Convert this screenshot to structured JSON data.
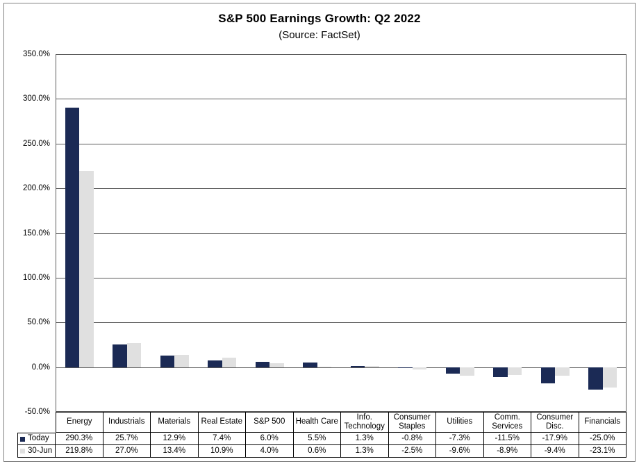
{
  "chart": {
    "title": "S&P 500 Earnings Growth: Q2 2022",
    "subtitle": "(Source: FactSet)"
  },
  "chart_data": {
    "type": "bar",
    "title": "S&P 500 Earnings Growth: Q2 2022",
    "subtitle": "(Source: FactSet)",
    "categories": [
      "Energy",
      "Industrials",
      "Materials",
      "Real Estate",
      "S&P 500",
      "Health Care",
      "Info. Technology",
      "Consumer Staples",
      "Utilities",
      "Comm. Services",
      "Consumer Disc.",
      "Financials"
    ],
    "series": [
      {
        "name": "Today",
        "color": "#1B2A55",
        "values": [
          290.3,
          25.7,
          12.9,
          7.4,
          6.0,
          5.5,
          1.3,
          -0.8,
          -7.3,
          -11.5,
          -17.9,
          -25.0
        ]
      },
      {
        "name": "30-Jun",
        "color": "#E0E0E0",
        "values": [
          219.8,
          27.0,
          13.4,
          10.9,
          4.0,
          0.6,
          1.3,
          -2.5,
          -9.6,
          -8.9,
          -9.4,
          -23.1
        ]
      }
    ],
    "ylim": [
      -50,
      350
    ],
    "ytick_step": 50,
    "ytick_labels": [
      "350.0%",
      "300.0%",
      "250.0%",
      "200.0%",
      "150.0%",
      "100.0%",
      "50.0%",
      "0.0%",
      "-50.0%"
    ],
    "value_format": "0.0%",
    "grid": true,
    "legend_position": "data-table-left",
    "colors": {
      "grid": "#595959",
      "plot_border": "#595959",
      "table_border": "#000000",
      "frame_border": "#808080",
      "text": "#000000",
      "background": "#FFFFFF"
    }
  }
}
